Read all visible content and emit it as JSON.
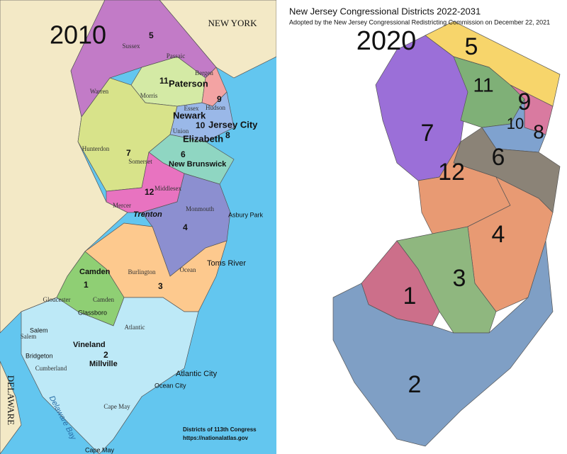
{
  "left_map": {
    "year_label": "2010",
    "region_labels": [
      "NEW YORK",
      "DELAWARE"
    ],
    "water_labels": [
      "Delaware Bay"
    ],
    "counties": [
      "Sussex",
      "Passaic",
      "Bergen",
      "Warren",
      "Morris",
      "Essex",
      "Hudson",
      "Union",
      "Hunterdon",
      "Somerset",
      "Middlesex",
      "Mercer",
      "Monmouth",
      "Burlington",
      "Ocean",
      "Camden",
      "Gloucester",
      "Salem",
      "Cumberland",
      "Atlantic",
      "Cape May"
    ],
    "cities": [
      "Paterson",
      "Newark",
      "Jersey City",
      "Elizabeth",
      "New Brunswick",
      "Trenton",
      "Asbury Park",
      "Toms River",
      "Camden",
      "Glassboro",
      "Salem",
      "Bridgeton",
      "Vineland",
      "Millville",
      "Atlantic City",
      "Ocean City",
      "Cape May"
    ],
    "districts": [
      "1",
      "2",
      "3",
      "4",
      "5",
      "6",
      "7",
      "8",
      "9",
      "10",
      "11",
      "12"
    ],
    "footer": [
      "Districts of 113th Congress",
      "https://nationalatlas.gov"
    ]
  },
  "right_map": {
    "title": "New Jersey Congressional Districts 2022-2031",
    "subtitle": "Adopted by the New Jersey Congressional Redistricting Commission on December 22, 2021",
    "year_label": "2020",
    "districts": [
      "1",
      "2",
      "3",
      "4",
      "5",
      "6",
      "7",
      "8",
      "9",
      "10",
      "11",
      "12"
    ]
  }
}
